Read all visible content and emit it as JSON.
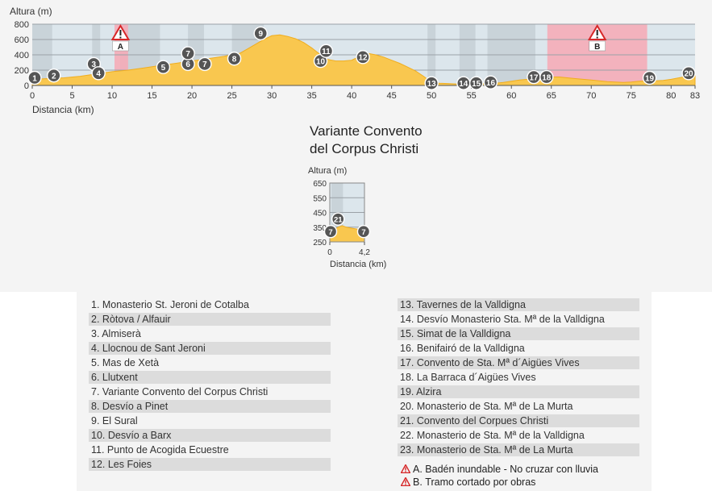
{
  "chart_data": [
    {
      "type": "area",
      "xlabel": "Distancia (km)",
      "ylabel": "Altura (m)",
      "xlim": [
        0,
        83
      ],
      "ylim": [
        0,
        800
      ],
      "x_ticks": [
        "0",
        "5",
        "10",
        "15",
        "20",
        "25",
        "30",
        "35",
        "40",
        "45",
        "50",
        "55",
        "60",
        "65",
        "70",
        "75",
        "80",
        "83"
      ],
      "y_ticks": [
        "0",
        "200",
        "400",
        "600",
        "800"
      ],
      "profile": {
        "x": [
          0,
          2,
          4,
          6,
          8,
          10,
          12,
          14,
          16,
          18,
          20,
          22,
          24,
          26,
          27,
          28,
          29,
          30,
          31,
          32,
          33,
          34,
          35,
          36,
          37,
          38,
          39,
          40,
          41,
          42,
          43,
          44,
          45,
          46,
          47,
          48,
          49,
          50,
          51,
          52,
          53,
          54,
          55,
          56,
          57,
          58,
          59,
          60,
          61,
          62,
          63,
          64,
          65,
          66,
          67,
          68,
          69,
          70,
          71,
          72,
          73,
          74,
          75,
          76,
          77,
          78,
          79,
          80,
          81,
          82,
          83
        ],
        "y": [
          80,
          90,
          100,
          120,
          150,
          180,
          200,
          230,
          260,
          290,
          320,
          350,
          380,
          420,
          480,
          540,
          600,
          650,
          660,
          640,
          610,
          560,
          490,
          410,
          340,
          320,
          320,
          330,
          380,
          420,
          400,
          370,
          330,
          290,
          240,
          190,
          120,
          40,
          30,
          25,
          20,
          20,
          20,
          22,
          25,
          30,
          40,
          55,
          70,
          80,
          90,
          100,
          110,
          110,
          100,
          90,
          80,
          70,
          60,
          50,
          45,
          40,
          45,
          55,
          60,
          60,
          65,
          80,
          100,
          120,
          140
        ]
      },
      "waypoints": [
        {
          "n": "1",
          "km": 0.3,
          "alt": 100
        },
        {
          "n": "2",
          "km": 2.7,
          "alt": 130
        },
        {
          "n": "3",
          "km": 7.7,
          "alt": 280
        },
        {
          "n": "4",
          "km": 8.3,
          "alt": 160
        },
        {
          "n": "5",
          "km": 16.4,
          "alt": 240
        },
        {
          "n": "6",
          "km": 19.5,
          "alt": 280
        },
        {
          "n": "7",
          "km": 19.5,
          "alt": 420
        },
        {
          "n": "7",
          "km": 21.6,
          "alt": 280
        },
        {
          "n": "8",
          "km": 25.3,
          "alt": 350
        },
        {
          "n": "9",
          "km": 28.6,
          "alt": 680
        },
        {
          "n": "10",
          "km": 36.1,
          "alt": 320
        },
        {
          "n": "11",
          "km": 36.8,
          "alt": 450
        },
        {
          "n": "12",
          "km": 41.4,
          "alt": 370
        },
        {
          "n": "13",
          "km": 50.0,
          "alt": 30
        },
        {
          "n": "14",
          "km": 54.0,
          "alt": 30
        },
        {
          "n": "15",
          "km": 55.6,
          "alt": 30
        },
        {
          "n": "16",
          "km": 57.4,
          "alt": 40
        },
        {
          "n": "17",
          "km": 62.8,
          "alt": 110
        },
        {
          "n": "18",
          "km": 64.4,
          "alt": 110
        },
        {
          "n": "19",
          "km": 77.3,
          "alt": 100
        },
        {
          "n": "20",
          "km": 82.2,
          "alt": 160
        }
      ],
      "shaded_zones": [
        [
          0,
          2.5
        ],
        [
          7.5,
          8.5
        ],
        [
          11,
          16
        ],
        [
          19.5,
          21.5
        ],
        [
          25,
          29
        ],
        [
          49.5,
          50.5
        ],
        [
          53.5,
          55.5
        ],
        [
          57,
          63
        ]
      ],
      "hazard_zones": [
        {
          "label": "A",
          "from": 10.3,
          "to": 12,
          "alt": 85
        },
        {
          "label": "B",
          "from": 64.5,
          "to": 77,
          "alt": 45
        }
      ]
    },
    {
      "type": "area",
      "title": "Variante Convento\ndel Corpus Christi",
      "xlabel": "Distancia (km)",
      "ylabel": "Altura (m)",
      "xlim": [
        0,
        4.2
      ],
      "ylim": [
        250,
        650
      ],
      "x_ticks": [
        "0",
        "4,2"
      ],
      "y_ticks": [
        "650",
        "550",
        "450",
        "350",
        "250"
      ],
      "profile": {
        "x": [
          0,
          0.5,
          1,
          1.5,
          2,
          2.5,
          3,
          3.5,
          4,
          4.2
        ],
        "y": [
          320,
          330,
          350,
          360,
          350,
          345,
          340,
          335,
          325,
          320
        ]
      },
      "waypoints": [
        {
          "n": "7",
          "km": 0.1,
          "alt": 320
        },
        {
          "n": "21",
          "km": 1.0,
          "alt": 405
        },
        {
          "n": "7",
          "km": 4.1,
          "alt": 320
        }
      ]
    }
  ],
  "variant_title_1": "Variante Convento",
  "variant_title_2": "del Corpus Christi",
  "legend": {
    "left": [
      "1. Monasterio St. Jeroni de Cotalba",
      "2. Ròtova / Alfauir",
      "3. Almiserà",
      "4. Llocnou de Sant Jeroni",
      "5. Mas de Xetà",
      "6. Llutxent",
      "7. Variante Convento del Corpus Christi",
      "8. Desvío a Pinet",
      "9. El Sural",
      "10. Desvío a Barx",
      "11. Punto de Acogida Ecuestre",
      "12. Les Foies"
    ],
    "right": [
      "13. Tavernes de la Valldigna",
      "14. Desvío Monasterio Sta. Mª de la Valldigna",
      "15. Simat de la Valldigna",
      "16. Benifairó de la Valldigna",
      "17. Convento de Sta. Mª d´Aigües Vives",
      "18. La Barraca d´Aigües Vives",
      "19. Alzira",
      "20. Monasterio de Sta. Mª de La Murta",
      "21. Convento del Corpues Christi",
      "22. Monasterio de Sta. Mª de la Valldigna",
      "23. Monasterio de Sta. Mª de La Murta"
    ],
    "notes": [
      {
        "letter": "A.",
        "text": "Badén inundable - No cruzar con lluvia"
      },
      {
        "letter": "B.",
        "text": "Tramo cortado por obras"
      }
    ]
  },
  "colors": {
    "profile_fill": "#f9c74f",
    "profile_stroke": "#f0ad1e",
    "plot_bg": "#dce6ec",
    "shade": "#b9c3ca",
    "hazard": "#f7a8b5",
    "marker": "#555555",
    "grid": "#9aa1a7",
    "warning": "#d62728"
  }
}
